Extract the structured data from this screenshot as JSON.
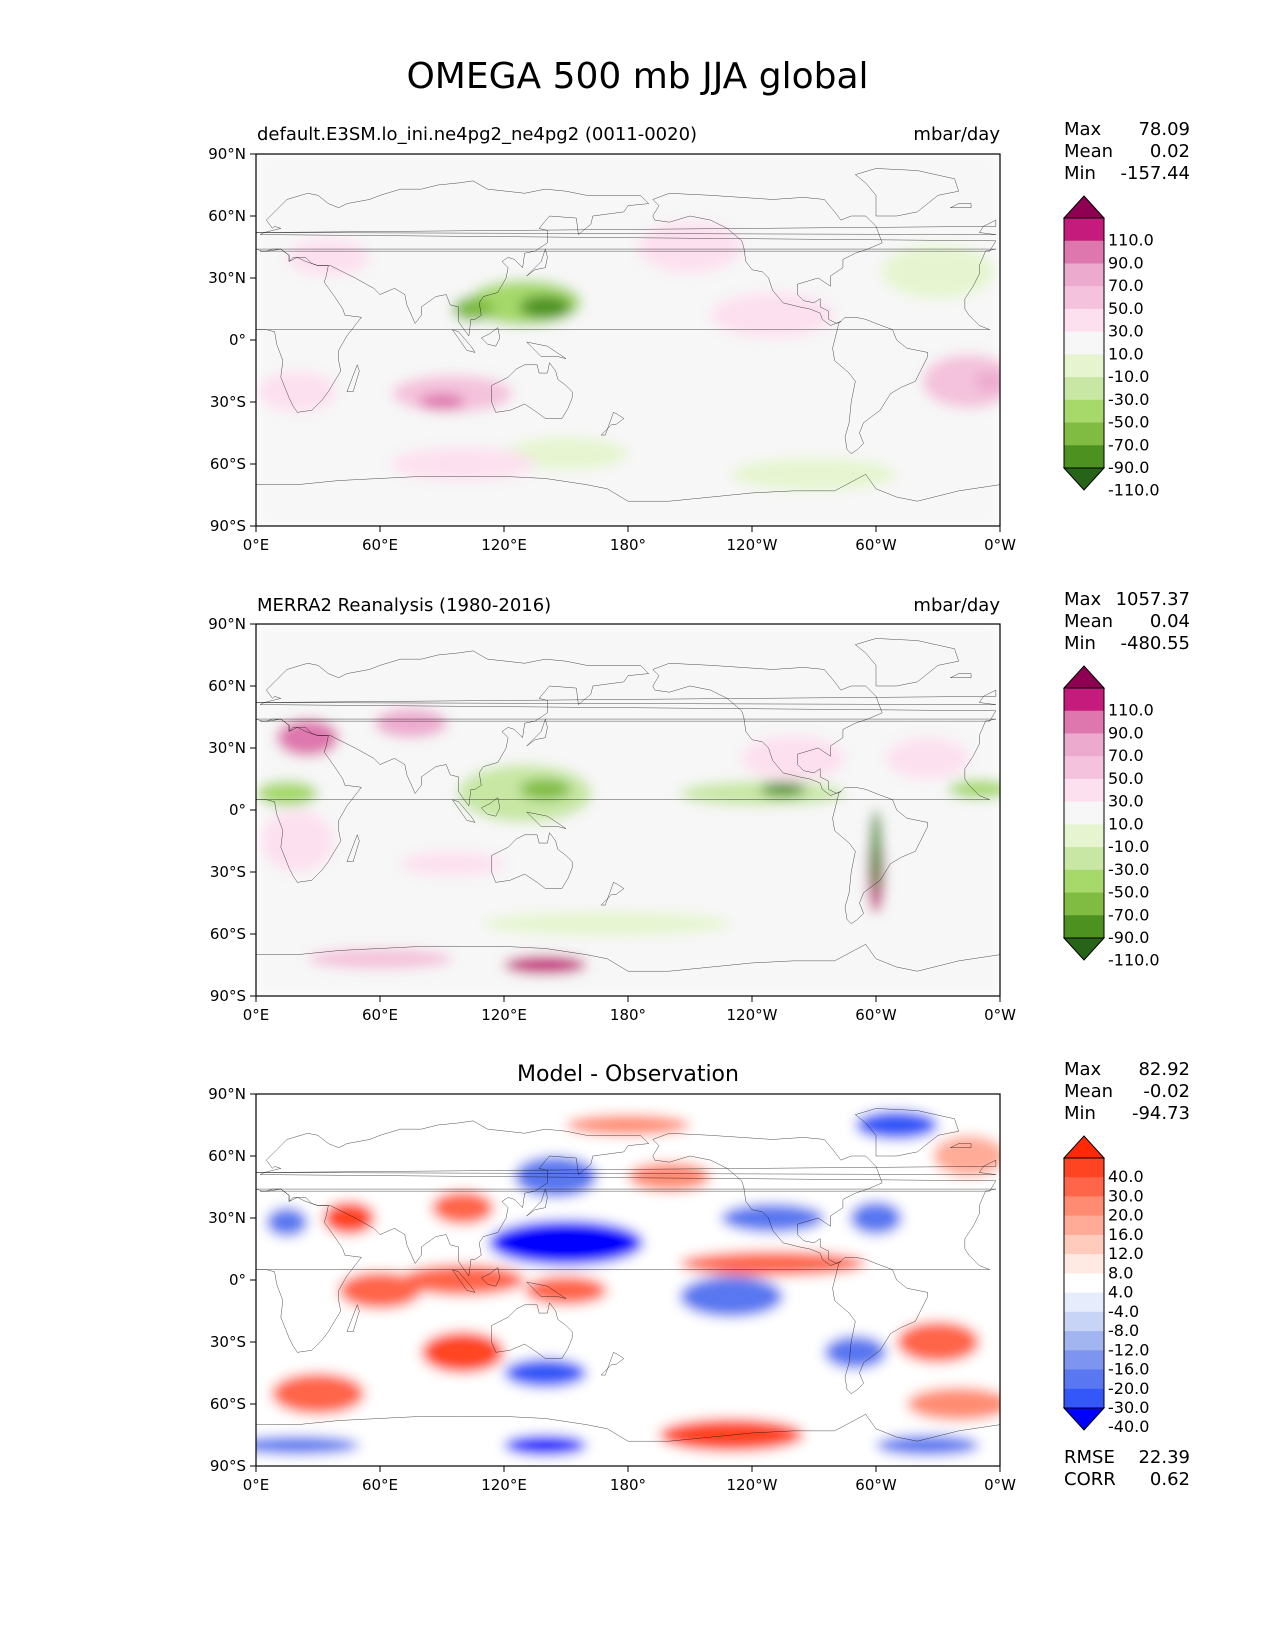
{
  "page": {
    "title": "OMEGA 500 mb JJA global"
  },
  "colors": {
    "piyg": [
      "#276419",
      "#4d9221",
      "#7fbc41",
      "#a6d96a",
      "#c8e7a4",
      "#e6f5d0",
      "#f7f7f7",
      "#fde0ef",
      "#f4c2dc",
      "#ecaacf",
      "#de77ae",
      "#c51b7d",
      "#8e0152"
    ],
    "bwr": [
      "#0000ff",
      "#3357f8",
      "#5877f0",
      "#7d95ee",
      "#a3b5f1",
      "#c7d4f6",
      "#e6ecfb",
      "#ffffff",
      "#ffe9e2",
      "#ffcbbd",
      "#ffab97",
      "#ff8c72",
      "#ff6548",
      "#ff4422",
      "#ff2a05"
    ]
  },
  "chart_data": [
    {
      "type": "heatmap",
      "panel": "test",
      "title_left": "default.E3SM.lo_ini.ne4pg2_ne4pg2 (0011-0020)",
      "title_right": "mbar/day",
      "stats": [
        {
          "name": "Max",
          "value": "78.09"
        },
        {
          "name": "Mean",
          "value": "0.02"
        },
        {
          "name": "Min",
          "value": "-157.44"
        }
      ],
      "x_ticks": [
        "0°E",
        "60°E",
        "120°E",
        "180°",
        "120°W",
        "60°W",
        "0°W"
      ],
      "y_ticks": [
        "90°N",
        "60°N",
        "30°N",
        "0°",
        "30°S",
        "60°S",
        "90°S"
      ],
      "xlim": [
        0,
        360
      ],
      "ylim": [
        -90,
        90
      ],
      "colorbar": {
        "palette": "piyg",
        "levels": [
          "110.0",
          "90.0",
          "70.0",
          "50.0",
          "30.0",
          "10.0",
          "-10.0",
          "-30.0",
          "-50.0",
          "-70.0",
          "-90.0",
          "-110.0"
        ]
      },
      "features": [
        {
          "lon": 130,
          "lat": 18,
          "w": 55,
          "h": 22,
          "value": -55
        },
        {
          "lon": 140,
          "lat": 16,
          "w": 25,
          "h": 11,
          "value": -100
        },
        {
          "lon": 105,
          "lat": 15,
          "w": 20,
          "h": 12,
          "value": -85
        },
        {
          "lon": 330,
          "lat": 33,
          "w": 55,
          "h": 26,
          "value": -22
        },
        {
          "lon": 250,
          "lat": 12,
          "w": 60,
          "h": 22,
          "value": 22
        },
        {
          "lon": 95,
          "lat": -26,
          "w": 58,
          "h": 18,
          "value": 35
        },
        {
          "lon": 90,
          "lat": -30,
          "w": 22,
          "h": 8,
          "value": 72
        },
        {
          "lon": 20,
          "lat": -25,
          "w": 38,
          "h": 20,
          "value": 28
        },
        {
          "lon": 345,
          "lat": -20,
          "w": 45,
          "h": 26,
          "value": 32
        },
        {
          "lon": 355,
          "lat": -20,
          "w": 15,
          "h": 10,
          "value": 55
        },
        {
          "lon": 35,
          "lat": 40,
          "w": 40,
          "h": 18,
          "value": 22
        },
        {
          "lon": 150,
          "lat": -55,
          "w": 60,
          "h": 16,
          "value": -18
        },
        {
          "lon": 210,
          "lat": 45,
          "w": 50,
          "h": 25,
          "value": 18
        },
        {
          "lon": 270,
          "lat": -65,
          "w": 80,
          "h": 16,
          "value": -20
        },
        {
          "lon": 100,
          "lat": -60,
          "w": 70,
          "h": 16,
          "value": 15
        }
      ]
    },
    {
      "type": "heatmap",
      "panel": "reference",
      "title_left": "MERRA2 Reanalysis (1980-2016)",
      "title_right": "mbar/day",
      "stats": [
        {
          "name": "Max",
          "value": "1057.37"
        },
        {
          "name": "Mean",
          "value": "0.04"
        },
        {
          "name": "Min",
          "value": "-480.55"
        }
      ],
      "x_ticks": [
        "0°E",
        "60°E",
        "120°E",
        "180°",
        "120°W",
        "60°W",
        "0°W"
      ],
      "y_ticks": [
        "90°N",
        "60°N",
        "30°N",
        "0°",
        "30°S",
        "60°S",
        "90°S"
      ],
      "xlim": [
        0,
        360
      ],
      "ylim": [
        -90,
        90
      ],
      "colorbar": {
        "palette": "piyg",
        "levels": [
          "110.0",
          "90.0",
          "70.0",
          "50.0",
          "30.0",
          "10.0",
          "-10.0",
          "-30.0",
          "-50.0",
          "-70.0",
          "-90.0",
          "-110.0"
        ]
      },
      "features": [
        {
          "lon": 245,
          "lat": 8,
          "w": 80,
          "h": 12,
          "value": -45
        },
        {
          "lon": 255,
          "lat": 10,
          "w": 22,
          "h": 7,
          "value": -95
        },
        {
          "lon": 130,
          "lat": 8,
          "w": 65,
          "h": 28,
          "value": -45
        },
        {
          "lon": 140,
          "lat": 10,
          "w": 25,
          "h": 10,
          "value": -80
        },
        {
          "lon": 15,
          "lat": 8,
          "w": 30,
          "h": 12,
          "value": -55
        },
        {
          "lon": 350,
          "lat": 10,
          "w": 30,
          "h": 9,
          "value": -60
        },
        {
          "lon": 25,
          "lat": 35,
          "w": 30,
          "h": 18,
          "value": 75
        },
        {
          "lon": 20,
          "lat": -15,
          "w": 35,
          "h": 30,
          "value": 22
        },
        {
          "lon": 300,
          "lat": -30,
          "w": 8,
          "h": 40,
          "value": 95
        },
        {
          "lon": 300,
          "lat": -20,
          "w": 6,
          "h": 40,
          "value": -95
        },
        {
          "lon": 140,
          "lat": -75,
          "w": 40,
          "h": 9,
          "value": 100
        },
        {
          "lon": 60,
          "lat": -72,
          "w": 70,
          "h": 10,
          "value": 40
        },
        {
          "lon": 170,
          "lat": -55,
          "w": 120,
          "h": 12,
          "value": -22
        },
        {
          "lon": 260,
          "lat": 25,
          "w": 50,
          "h": 22,
          "value": 28
        },
        {
          "lon": 95,
          "lat": -26,
          "w": 50,
          "h": 12,
          "value": 30
        },
        {
          "lon": 325,
          "lat": 25,
          "w": 40,
          "h": 20,
          "value": 22
        },
        {
          "lon": 75,
          "lat": 42,
          "w": 35,
          "h": 14,
          "value": 60
        }
      ]
    },
    {
      "type": "heatmap",
      "panel": "difference",
      "title_center": "Model - Observation",
      "stats": [
        {
          "name": "Max",
          "value": "82.92"
        },
        {
          "name": "Mean",
          "value": "-0.02"
        },
        {
          "name": "Min",
          "value": "-94.73"
        }
      ],
      "metrics": [
        {
          "name": "RMSE",
          "value": "22.39"
        },
        {
          "name": "CORR",
          "value": "0.62"
        }
      ],
      "x_ticks": [
        "0°E",
        "60°E",
        "120°E",
        "180°",
        "120°W",
        "60°W",
        "0°W"
      ],
      "y_ticks": [
        "90°N",
        "60°N",
        "30°N",
        "0°",
        "30°S",
        "60°S",
        "90°S"
      ],
      "xlim": [
        0,
        360
      ],
      "ylim": [
        -90,
        90
      ],
      "colorbar": {
        "palette": "bwr",
        "levels": [
          "40.0",
          "30.0",
          "20.0",
          "16.0",
          "12.0",
          "8.0",
          "4.0",
          "-4.0",
          "-8.0",
          "-12.0",
          "-16.0",
          "-20.0",
          "-30.0",
          "-40.0"
        ]
      },
      "features": [
        {
          "lon": 150,
          "lat": 18,
          "w": 75,
          "h": 22,
          "value": -45
        },
        {
          "lon": 230,
          "lat": -8,
          "w": 50,
          "h": 20,
          "value": -25
        },
        {
          "lon": 250,
          "lat": 8,
          "w": 90,
          "h": 12,
          "value": 30
        },
        {
          "lon": 100,
          "lat": 0,
          "w": 60,
          "h": 15,
          "value": 28
        },
        {
          "lon": 150,
          "lat": -5,
          "w": 40,
          "h": 14,
          "value": 30
        },
        {
          "lon": 60,
          "lat": -5,
          "w": 40,
          "h": 18,
          "value": 25
        },
        {
          "lon": 45,
          "lat": 30,
          "w": 25,
          "h": 16,
          "value": 35
        },
        {
          "lon": 100,
          "lat": 35,
          "w": 30,
          "h": 16,
          "value": 30
        },
        {
          "lon": 145,
          "lat": 50,
          "w": 40,
          "h": 20,
          "value": -25
        },
        {
          "lon": 30,
          "lat": -55,
          "w": 45,
          "h": 20,
          "value": 30
        },
        {
          "lon": 100,
          "lat": -35,
          "w": 40,
          "h": 20,
          "value": 32
        },
        {
          "lon": 140,
          "lat": -45,
          "w": 40,
          "h": 14,
          "value": -30
        },
        {
          "lon": 20,
          "lat": -80,
          "w": 60,
          "h": 9,
          "value": -25
        },
        {
          "lon": 140,
          "lat": -80,
          "w": 40,
          "h": 10,
          "value": -45
        },
        {
          "lon": 230,
          "lat": -75,
          "w": 70,
          "h": 16,
          "value": 32
        },
        {
          "lon": 325,
          "lat": -80,
          "w": 50,
          "h": 10,
          "value": -28
        },
        {
          "lon": 290,
          "lat": -35,
          "w": 30,
          "h": 16,
          "value": -28
        },
        {
          "lon": 330,
          "lat": -30,
          "w": 40,
          "h": 20,
          "value": 22
        },
        {
          "lon": 340,
          "lat": -60,
          "w": 50,
          "h": 16,
          "value": 20
        },
        {
          "lon": 250,
          "lat": 30,
          "w": 50,
          "h": 14,
          "value": -22
        },
        {
          "lon": 300,
          "lat": 30,
          "w": 25,
          "h": 16,
          "value": -20
        },
        {
          "lon": 310,
          "lat": 75,
          "w": 40,
          "h": 14,
          "value": -35
        },
        {
          "lon": 180,
          "lat": 75,
          "w": 60,
          "h": 10,
          "value": 18
        },
        {
          "lon": 15,
          "lat": 28,
          "w": 20,
          "h": 14,
          "value": -25
        },
        {
          "lon": 200,
          "lat": 50,
          "w": 40,
          "h": 14,
          "value": 20
        },
        {
          "lon": 345,
          "lat": 60,
          "w": 35,
          "h": 20,
          "value": 15
        }
      ]
    }
  ]
}
